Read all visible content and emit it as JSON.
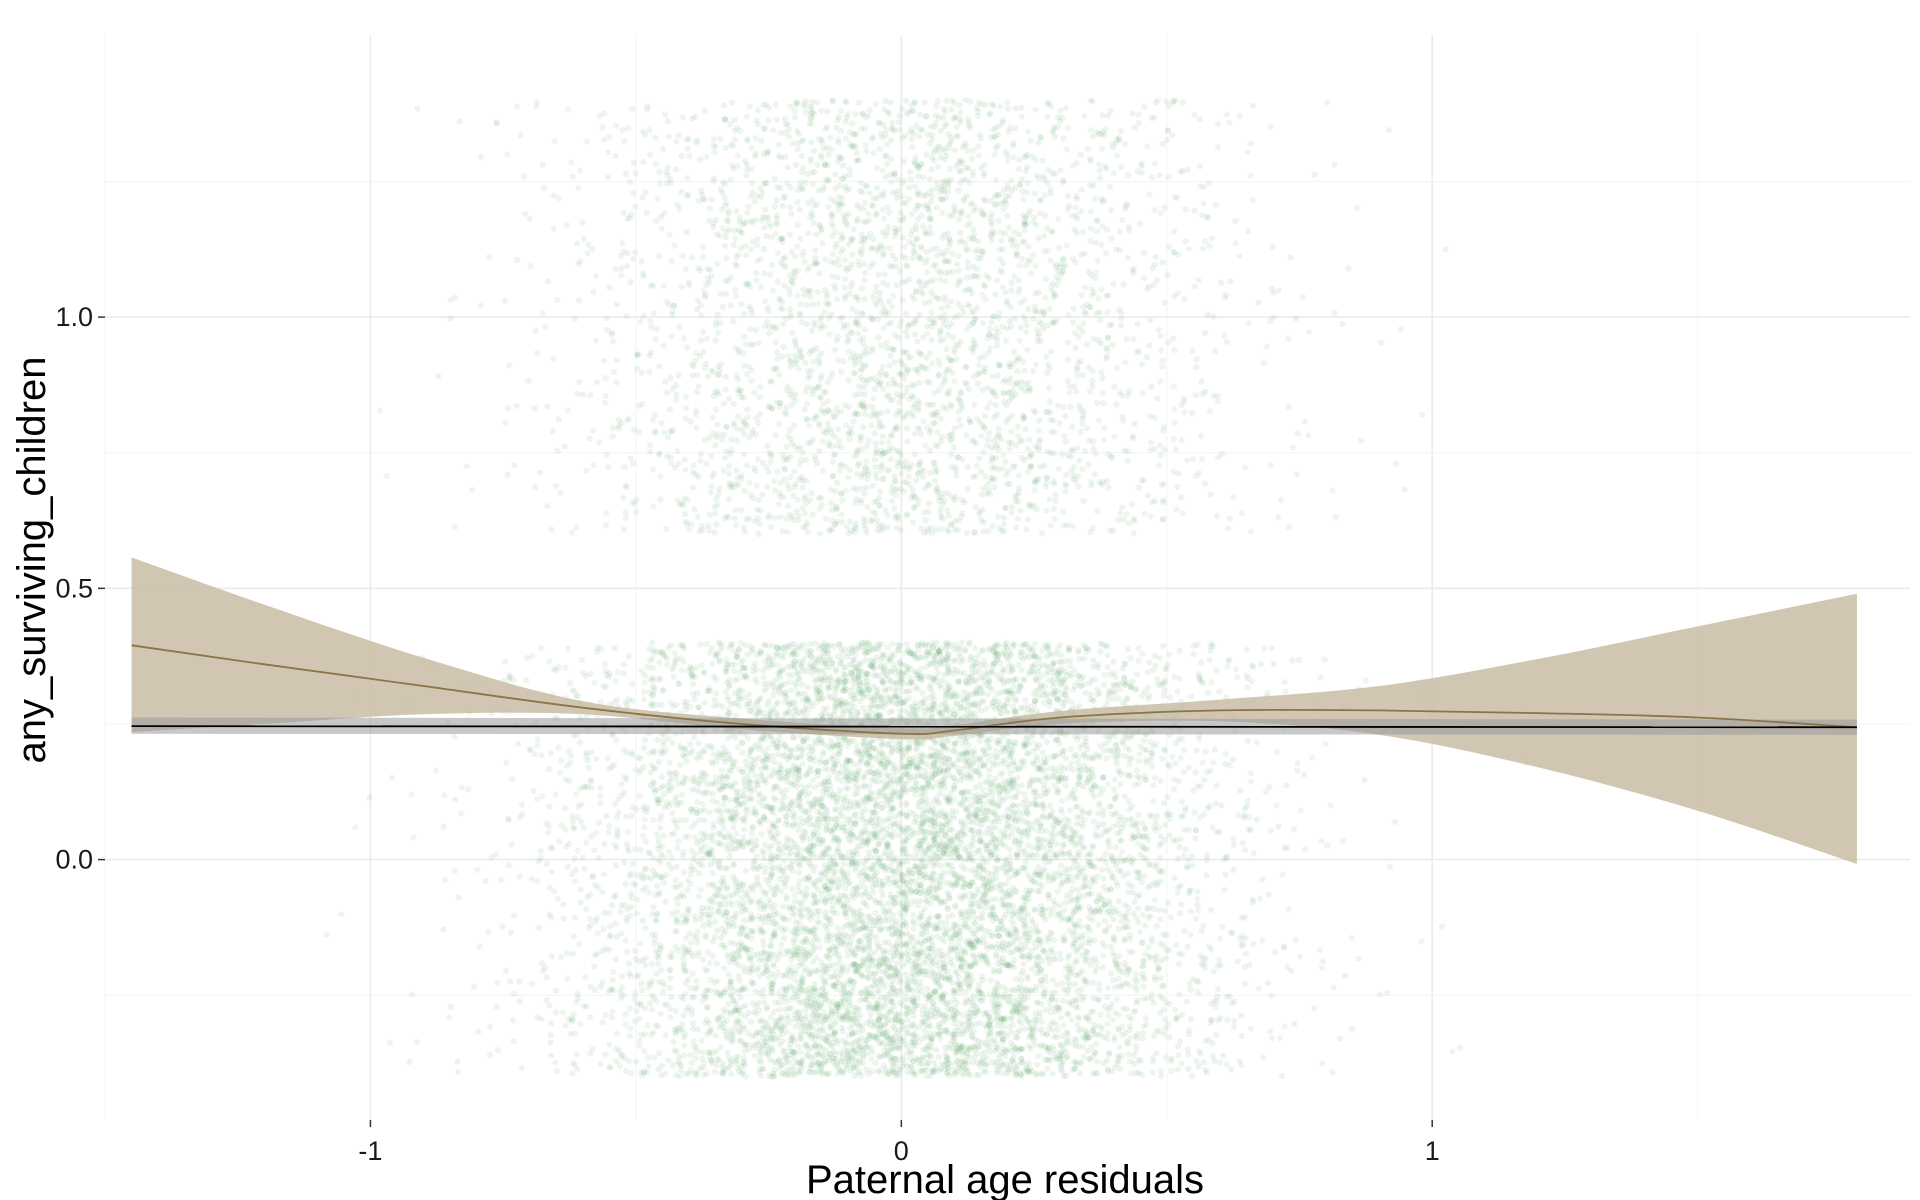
{
  "chart_data": {
    "type": "scatter",
    "title": "",
    "xlabel": "Paternal age residuals",
    "ylabel": "any_surviving_children",
    "xlim": [
      -1.5,
      1.9
    ],
    "ylim": [
      -0.48,
      1.52
    ],
    "x_ticks": [
      {
        "value": -1,
        "label": "-1"
      },
      {
        "value": 0,
        "label": "0"
      },
      {
        "value": 1,
        "label": "1"
      }
    ],
    "y_ticks": [
      {
        "value": 0.0,
        "label": "0.0"
      },
      {
        "value": 0.5,
        "label": "0.5"
      },
      {
        "value": 1.0,
        "label": "1.0"
      }
    ],
    "grid": true,
    "legend": "none",
    "points": {
      "description_of_distribution": "jittered binary outcome",
      "groups": [
        {
          "outcome": 0,
          "y_range": [
            -0.4,
            0.4
          ],
          "x_mean": 0.0,
          "x_sd": 0.3,
          "count": 9000
        },
        {
          "outcome": 1,
          "y_range": [
            0.6,
            1.4
          ],
          "x_mean": 0.0,
          "x_sd": 0.3,
          "count": 3300
        }
      ],
      "color": "#4e9a5a",
      "opacity": 0.1
    },
    "linear_fit": {
      "color": "#000000",
      "ribbon_color": "#9a9a9a",
      "x": [
        -1.45,
        1.8
      ],
      "y": [
        0.246,
        0.244
      ],
      "lower": [
        0.232,
        0.23
      ],
      "upper": [
        0.262,
        0.258
      ]
    },
    "smooth_fit": {
      "color": "#8a7448",
      "ribbon_color": "#c8bca5",
      "x": [
        -1.45,
        -1.2,
        -0.9,
        -0.6,
        -0.3,
        0.0,
        0.1,
        0.3,
        0.6,
        0.9,
        1.2,
        1.5,
        1.8
      ],
      "y": [
        0.395,
        0.36,
        0.32,
        0.28,
        0.25,
        0.232,
        0.238,
        0.262,
        0.275,
        0.275,
        0.27,
        0.262,
        0.244
      ],
      "lower": [
        0.235,
        0.25,
        0.268,
        0.268,
        0.24,
        0.222,
        0.228,
        0.25,
        0.255,
        0.23,
        0.17,
        0.09,
        -0.008
      ],
      "upper": [
        0.557,
        0.47,
        0.372,
        0.292,
        0.26,
        0.242,
        0.248,
        0.274,
        0.295,
        0.32,
        0.37,
        0.43,
        0.49
      ]
    }
  }
}
